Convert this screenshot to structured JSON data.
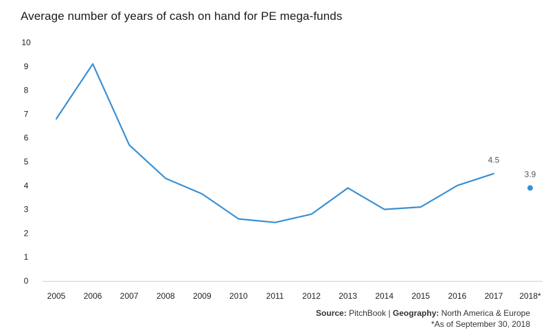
{
  "title": "Average number of years of cash on hand for PE mega-funds",
  "chart_data": {
    "type": "line",
    "title": "Average number of years of cash on hand for PE mega-funds",
    "xlabel": "",
    "ylabel": "",
    "categories": [
      "2005",
      "2006",
      "2007",
      "2008",
      "2009",
      "2010",
      "2011",
      "2012",
      "2013",
      "2014",
      "2015",
      "2016",
      "2017",
      "2018*"
    ],
    "y_ticks": [
      "0",
      "1",
      "2",
      "3",
      "4",
      "5",
      "6",
      "7",
      "8",
      "9",
      "10"
    ],
    "ylim": [
      0,
      10
    ],
    "series": [
      {
        "color": "#3a8fd1",
        "values": [
          6.8,
          9.1,
          5.7,
          4.3,
          3.65,
          2.6,
          2.45,
          2.8,
          3.9,
          3.0,
          3.1,
          4.0,
          4.5,
          null
        ]
      },
      {
        "color": "#3a8fd1",
        "style": "point",
        "values": [
          null,
          null,
          null,
          null,
          null,
          null,
          null,
          null,
          null,
          null,
          null,
          null,
          null,
          3.9
        ]
      }
    ],
    "data_labels": [
      {
        "category": "2017",
        "value": 4.5,
        "text": "4.5"
      },
      {
        "category": "2018*",
        "value": 3.9,
        "text": "3.9"
      }
    ],
    "grid": false,
    "legend": "none"
  },
  "footer": {
    "source_label": "Source:",
    "source_value": "PitchBook",
    "separator": "|",
    "geo_label": "Geography:",
    "geo_value": "North America & Europe",
    "note": "*As of September 30, 2018"
  }
}
